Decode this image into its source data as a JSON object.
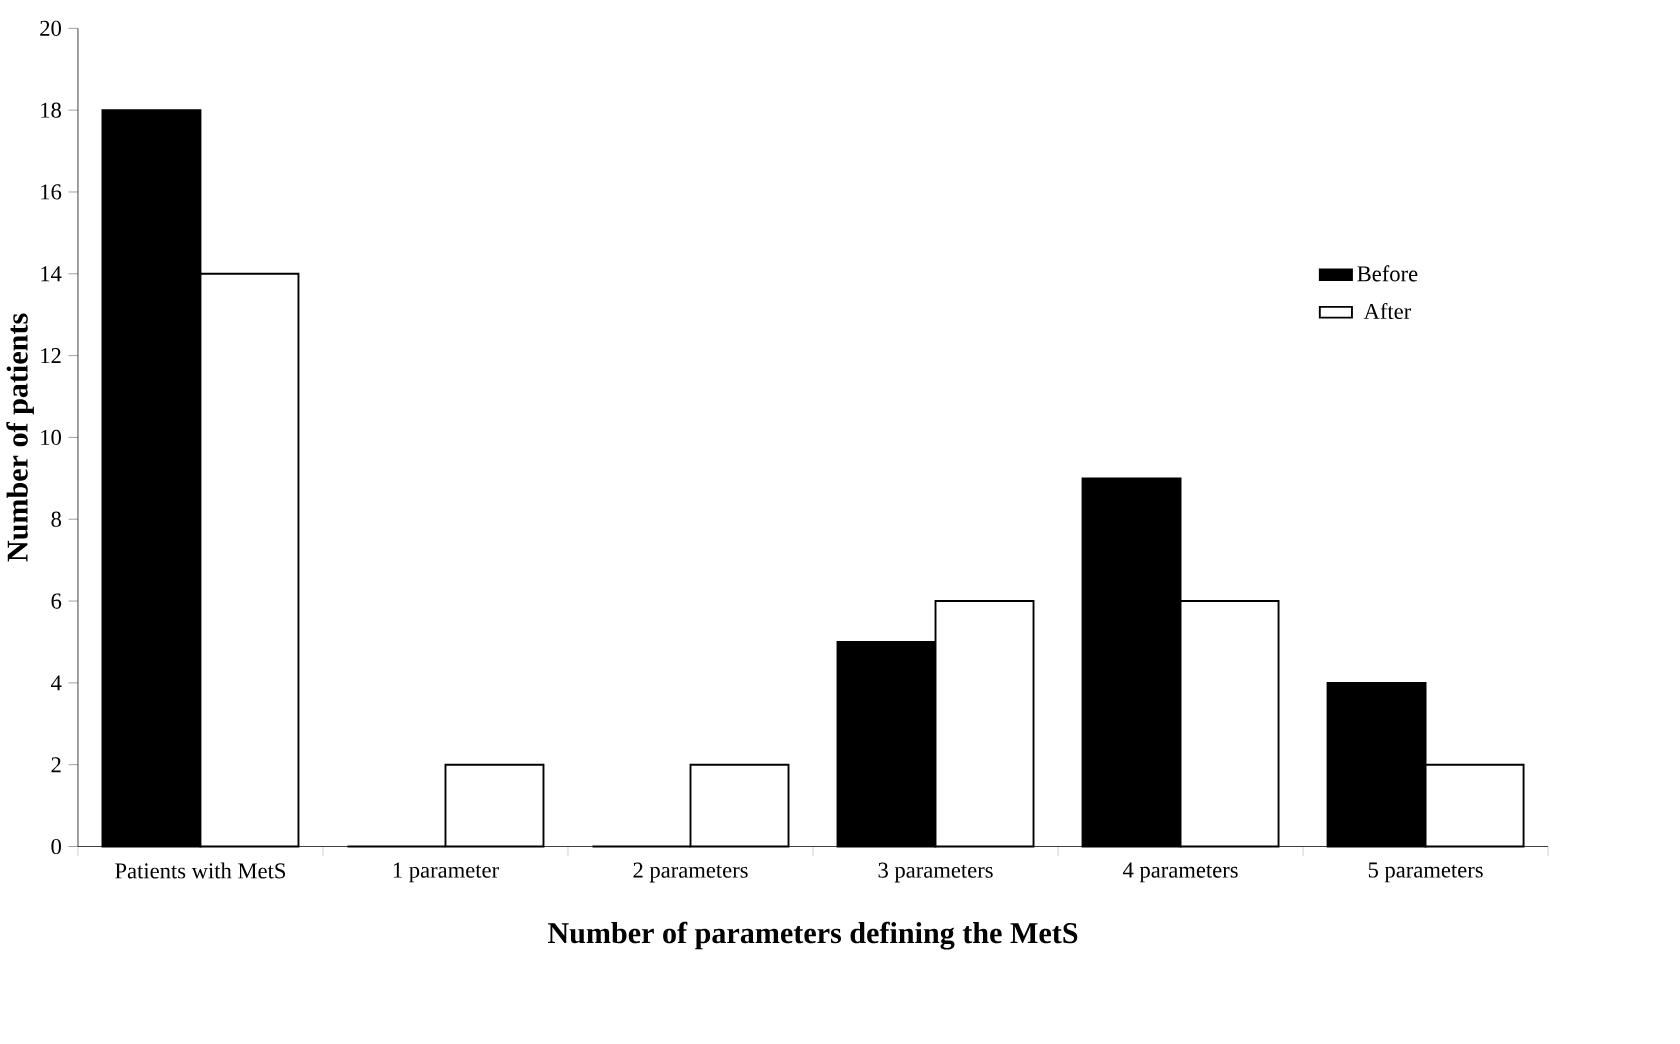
{
  "chart_data": {
    "type": "bar",
    "xlabel": "Number of parameters defining the MetS",
    "ylabel": "Number of patients",
    "categories": [
      "Patients with MetS",
      "1 parameter",
      "2 parameters",
      "3 parameters",
      "4 parameters",
      "5 parameters"
    ],
    "series": [
      {
        "name": "Before",
        "color": "#000000",
        "values": [
          18,
          0,
          0,
          5,
          9,
          4
        ]
      },
      {
        "name": "After",
        "color": "#ffffff",
        "values": [
          14,
          2,
          2,
          6,
          6,
          2
        ]
      }
    ],
    "ylim": [
      0,
      20
    ],
    "yticks": [
      0,
      2,
      4,
      6,
      8,
      10,
      12,
      14,
      16,
      18,
      20
    ],
    "grid": false,
    "legend": "right"
  }
}
